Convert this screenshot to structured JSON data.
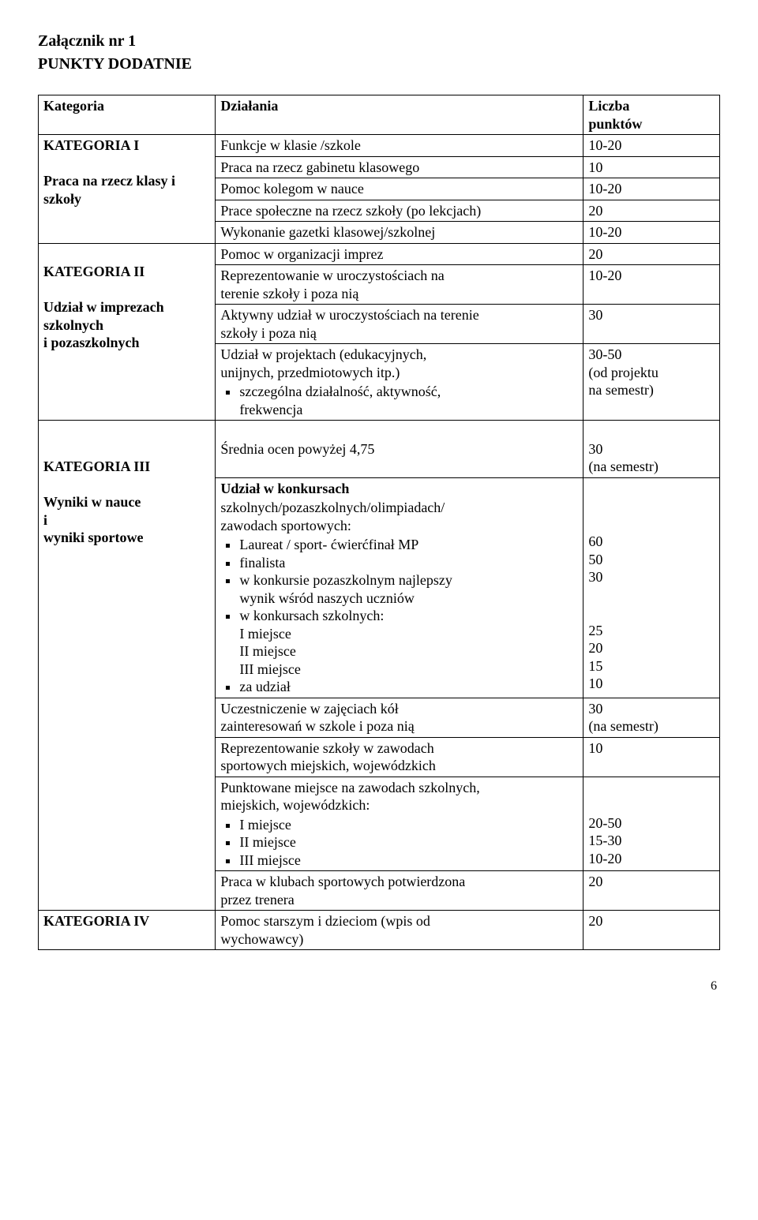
{
  "heading": {
    "line1": "Załącznik nr 1",
    "line2": "PUNKTY   DODATNIE"
  },
  "header_row": {
    "cat": "Kategoria",
    "act": "Działania",
    "pts_l1": "Liczba",
    "pts_l2": "punktów"
  },
  "kat1": {
    "title": "KATEGORIA I",
    "sub_l1": "Praca na rzecz klasy i",
    "sub_l2": "szkoły",
    "rows": {
      "r1_act": "Funkcje w klasie /szkole",
      "r1_pts": "10-20",
      "r2_act": "Praca na rzecz gabinetu klasowego",
      "r2_pts": "10",
      "r3_act": "Pomoc kolegom w nauce",
      "r3_pts": "10-20",
      "r4_act": "Prace społeczne na rzecz szkoły (po lekcjach)",
      "r4_pts": "20",
      "r5_act": "Wykonanie gazetki klasowej/szkolnej",
      "r5_pts": "10-20"
    }
  },
  "kat2": {
    "title": "KATEGORIA II",
    "sub_l1": "Udział w imprezach",
    "sub_l2": "szkolnych",
    "sub_l3": "i pozaszkolnych",
    "rows": {
      "r1_act": "Pomoc w organizacji imprez",
      "r1_pts": "20",
      "r2_act_l1": "Reprezentowanie w uroczystościach na",
      "r2_act_l2": "terenie szkoły i poza nią",
      "r2_pts": "10-20",
      "r3_act_l1": "Aktywny udział w uroczystościach na terenie",
      "r3_act_l2": "szkoły i poza nią",
      "r3_pts": "30",
      "r4_act_l1": "Udział w projektach (edukacyjnych,",
      "r4_act_l2": "unijnych, przedmiotowych itp.)",
      "r4_bullet_l1": "szczególna działalność, aktywność,",
      "r4_bullet_l2": "frekwencja",
      "r4_pts_l1": "30-50",
      "r4_pts_l2": "(od projektu",
      "r4_pts_l3": "na semestr)"
    }
  },
  "kat3": {
    "title": "KATEGORIA III",
    "sub_l1": "Wyniki w nauce",
    "sub_l2": "i",
    "sub_l3": " wyniki sportowe",
    "rows": {
      "r1_act": "Średnia ocen powyżej 4,75",
      "r1_pts_l1": "30",
      "r1_pts_l2": "(na semestr)",
      "r2_intro_l1": "Udział w konkursach",
      "r2_intro_l2": "szkolnych/pozaszkolnych/olimpiadach/",
      "r2_intro_l3": "zawodach sportowych:",
      "r2_b1": "Laureat / sport- ćwierćfinał MP",
      "r2_b2": "finalista",
      "r2_b3_l1": "w konkursie pozaszkolnym najlepszy",
      "r2_b3_l2": "wynik wśród naszych uczniów",
      "r2_b4_l1": "w konkursach szkolnych:",
      "r2_b4_l2": " I miejsce",
      "r2_b4_l3": "II miejsce",
      "r2_b4_l4": "III miejsce",
      "r2_b5": "za udział",
      "r2_pts_l1": "",
      "r2_pts_l2": "",
      "r2_pts_l3": "",
      "r2_pts_l4": "60",
      "r2_pts_l5": "50",
      "r2_pts_l6": "30",
      "r2_pts_l7": "",
      "r2_pts_l8": "",
      "r2_pts_l9": "25",
      "r2_pts_l10": "20",
      "r2_pts_l11": "15",
      "r2_pts_l12": "10",
      "r3_act_l1": "Uczestniczenie w zajęciach kół",
      "r3_act_l2": "zainteresowań w szkole i poza nią",
      "r3_pts_l1": "30",
      "r3_pts_l2": "(na semestr)",
      "r4_act_l1": "Reprezentowanie szkoły w zawodach",
      "r4_act_l2": "sportowych miejskich, wojewódzkich",
      "r4_pts": "10",
      "r5_act_l1": "Punktowane miejsce na zawodach szkolnych,",
      "r5_act_l2": "miejskich, wojewódzkich:",
      "r5_b1": "I miejsce",
      "r5_b2": "II miejsce",
      "r5_b3": "III miejsce",
      "r5_pts_l1": "",
      "r5_pts_l2": "",
      "r5_pts_l3": "20-50",
      "r5_pts_l4": "15-30",
      "r5_pts_l5": "10-20",
      "r6_act_l1": "Praca w klubach sportowych potwierdzona",
      "r6_act_l2": "przez trenera",
      "r6_pts": "20"
    }
  },
  "kat4": {
    "title": "KATEGORIA IV",
    "rows": {
      "r1_act_l1": "Pomoc starszym i dzieciom (wpis od",
      "r1_act_l2": "wychowawcy)",
      "r1_pts": "20"
    }
  },
  "page_number": "6"
}
